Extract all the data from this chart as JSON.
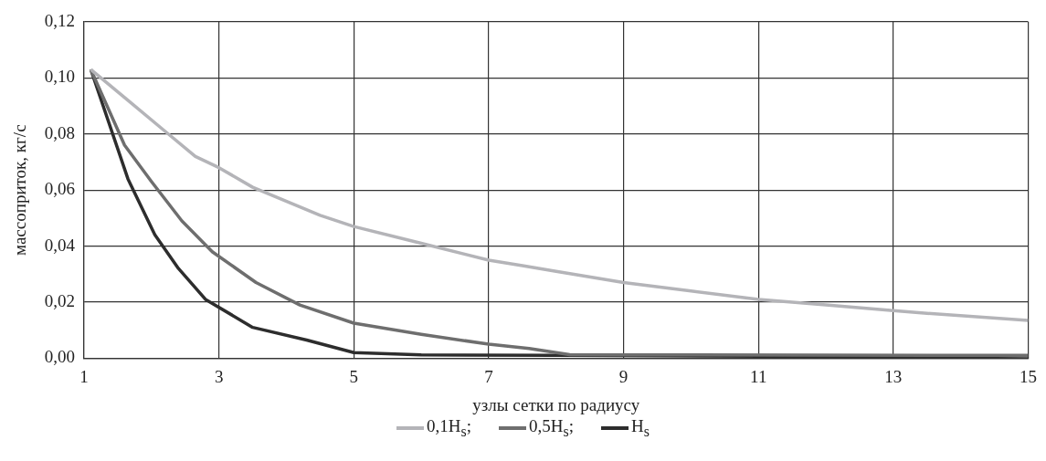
{
  "chart_data": {
    "type": "line",
    "xlabel": "узлы сетки по радиусу",
    "ylabel": "массоприток, кг/с",
    "xlim": [
      1,
      15
    ],
    "xticks": [
      1,
      3,
      5,
      7,
      9,
      11,
      13,
      15
    ],
    "ylim": [
      0,
      0.12
    ],
    "yticks": [
      {
        "value": 0,
        "label": "0,00"
      },
      {
        "value": 0.02,
        "label": "0,02"
      },
      {
        "value": 0.04,
        "label": "0,04"
      },
      {
        "value": 0.06,
        "label": "0,06"
      },
      {
        "value": 0.08,
        "label": "0,08"
      },
      {
        "value": 0.1,
        "label": "0,10"
      },
      {
        "value": 0.12,
        "label": "0,12"
      }
    ],
    "grid": true,
    "legend": "bottom",
    "marker": "none",
    "line_style": "solid",
    "series": [
      {
        "name": "0,1H$_{s}$;",
        "color": "#b4b4b8",
        "x": [
          1.1,
          1.65,
          2.2,
          2.65,
          3.0,
          3.5,
          4.5,
          5,
          6,
          7,
          7.5,
          8,
          9,
          10,
          11,
          12,
          13,
          13.5,
          15
        ],
        "values": [
          0.103,
          0.092,
          0.081,
          0.072,
          0.068,
          0.061,
          0.051,
          0.047,
          0.041,
          0.035,
          0.033,
          0.031,
          0.027,
          0.024,
          0.021,
          0.019,
          0.017,
          0.016,
          0.0135
        ]
      },
      {
        "name": "0,5H$_{s}$;",
        "color": "#6e6e6e",
        "x": [
          1.1,
          1.6,
          2.0,
          2.45,
          2.9,
          3.55,
          4.2,
          5,
          6,
          7,
          7.6,
          8.2,
          9,
          15
        ],
        "values": [
          0.103,
          0.076,
          0.063,
          0.049,
          0.038,
          0.027,
          0.019,
          0.0125,
          0.0085,
          0.005,
          0.0035,
          0.0013,
          0.0012,
          0.001
        ]
      },
      {
        "name": "H$_{s}$",
        "color": "#2d2d2d",
        "x": [
          1.1,
          1.65,
          2.05,
          2.4,
          2.8,
          3.5,
          4.3,
          5,
          6,
          8,
          13,
          15
        ],
        "values": [
          0.103,
          0.064,
          0.044,
          0.032,
          0.021,
          0.011,
          0.0065,
          0.002,
          0.0012,
          0.001,
          0.0005,
          0.0008
        ]
      }
    ]
  }
}
